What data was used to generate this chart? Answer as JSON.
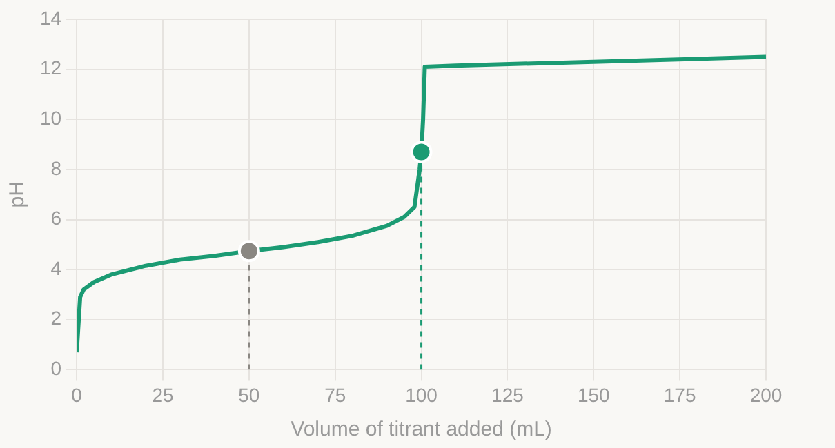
{
  "chart_data": {
    "type": "line",
    "xlabel": "Volume of titrant added (mL)",
    "ylabel": "pH",
    "xlim": [
      0,
      200
    ],
    "xticks": [
      0,
      25,
      50,
      75,
      100,
      125,
      150,
      175,
      200
    ],
    "ylim": [
      0,
      14
    ],
    "yticks": [
      0,
      2,
      4,
      6,
      8,
      10,
      12,
      14
    ],
    "grid": true,
    "legend": false,
    "marker": "none",
    "line_style": "solid",
    "series": [
      {
        "type": "line",
        "color": "#1b9b73",
        "x": [
          0,
          1,
          2,
          5,
          10,
          20,
          30,
          40,
          50,
          60,
          70,
          80,
          90,
          95,
          98,
          99.5,
          100,
          100.5,
          101,
          110,
          150,
          200
        ],
        "values": [
          0.7,
          2.9,
          3.2,
          3.5,
          3.8,
          4.15,
          4.4,
          4.55,
          4.74,
          4.9,
          5.1,
          5.35,
          5.75,
          6.1,
          6.5,
          8,
          8.7,
          10,
          12.1,
          12.15,
          12.3,
          12.5
        ]
      },
      {
        "type": "line",
        "color": "#8a8782",
        "line_style": "dashed",
        "x": [
          50,
          50
        ],
        "values": [
          0,
          4.74
        ]
      },
      {
        "type": "line",
        "color": "#1b9b73",
        "line_style": "dashed",
        "x": [
          100,
          100
        ],
        "values": [
          0,
          8.7
        ]
      },
      {
        "type": "scatter",
        "color": "#8a8782",
        "marker": "circle",
        "x": [
          50
        ],
        "values": [
          4.74
        ]
      },
      {
        "type": "scatter",
        "color": "#1b9b73",
        "marker": "circle",
        "x": [
          100
        ],
        "values": [
          8.7
        ]
      }
    ]
  }
}
